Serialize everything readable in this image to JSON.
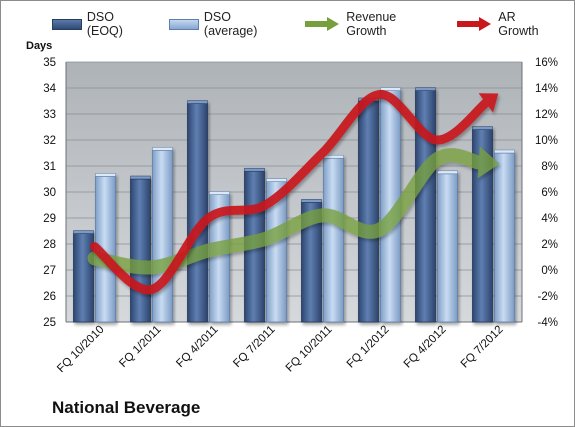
{
  "chart_data": {
    "type": "bar",
    "title": "",
    "caption": "National Beverage",
    "ylabel_left": "Days",
    "ylabel_right": "",
    "categories": [
      "FQ 10/2010",
      "FQ 1/2011",
      "FQ 4/2011",
      "FQ 7/2011",
      "FQ 10/2011",
      "FQ 1/2012",
      "FQ 4/2012",
      "FQ 7/2012"
    ],
    "ylim_left": [
      25,
      35
    ],
    "ylim_right": [
      -0.04,
      0.16
    ],
    "yticks_left": [
      "25",
      "26",
      "27",
      "28",
      "29",
      "30",
      "31",
      "32",
      "33",
      "34",
      "35"
    ],
    "yticks_right": [
      "-4%",
      "-2%",
      "0%",
      "2%",
      "4%",
      "6%",
      "8%",
      "10%",
      "12%",
      "14%",
      "16%"
    ],
    "legend_position": "top",
    "grid": true,
    "bar_series": [
      {
        "name": "DSO (EOQ)",
        "color": "#3d5a8a",
        "values": [
          28.4,
          30.5,
          33.4,
          30.8,
          29.6,
          33.5,
          33.9,
          32.4
        ]
      },
      {
        "name": "DSO (average)",
        "color": "#9bbbe0",
        "values": [
          30.6,
          31.6,
          29.9,
          30.4,
          31.3,
          33.9,
          30.7,
          31.5
        ]
      }
    ],
    "line_series": [
      {
        "name": "Revenue Growth",
        "color": "#77a03c",
        "axis": "right",
        "values": [
          0.009,
          0.002,
          0.015,
          0.024,
          0.042,
          0.031,
          0.085,
          0.082
        ]
      },
      {
        "name": "AR Growth",
        "color": "#c8181e",
        "axis": "right",
        "values": [
          0.018,
          -0.015,
          0.04,
          0.05,
          0.09,
          0.135,
          0.1,
          0.133
        ]
      }
    ]
  }
}
